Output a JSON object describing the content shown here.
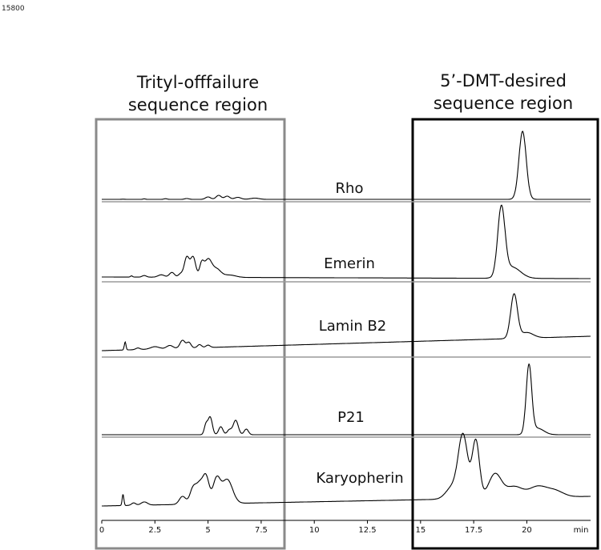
{
  "figure_id": "15800",
  "chart_data": {
    "type": "line",
    "xlabel": "min",
    "xlim": [
      0,
      23
    ],
    "x_ticks": [
      0,
      2.5,
      5,
      7.5,
      10,
      12.5,
      15,
      17.5,
      20
    ],
    "x_tick_labels": [
      "0",
      "2.5",
      "5",
      "7.5",
      "10",
      "12.5",
      "15",
      "17.5",
      "20"
    ],
    "x_unit_label": "min",
    "regions": [
      {
        "label_lines": [
          "Trityl-offfailure",
          "sequence region"
        ],
        "x_range": [
          0,
          8.6
        ],
        "color": "#8a8a8a"
      },
      {
        "label_lines": [
          "5’-DMT-desired",
          "sequence region"
        ],
        "x_range": [
          14.9,
          23
        ],
        "color": "#000000"
      }
    ],
    "series": [
      {
        "name": "Rho",
        "baseline": 0.0,
        "drift": 0.0,
        "peaks": [
          [
            1.0,
            0.2,
            0.08
          ],
          [
            2.0,
            0.6,
            0.06
          ],
          [
            3.0,
            0.8,
            0.08
          ],
          [
            4.0,
            1.0,
            0.1
          ],
          [
            5.0,
            3,
            0.12
          ],
          [
            5.5,
            5,
            0.12
          ],
          [
            5.9,
            4,
            0.12
          ],
          [
            6.4,
            2.5,
            0.15
          ],
          [
            7.2,
            1.5,
            0.2
          ],
          [
            19.8,
            85,
            0.17
          ]
        ]
      },
      {
        "name": "Emerin",
        "baseline": 0.0,
        "drift": -2.0,
        "peaks": [
          [
            1.4,
            1.5,
            0.05
          ],
          [
            2.0,
            2.0,
            0.1
          ],
          [
            2.8,
            3.0,
            0.15
          ],
          [
            3.3,
            6.0,
            0.12
          ],
          [
            3.7,
            4.0,
            0.1
          ],
          [
            4.0,
            25,
            0.12
          ],
          [
            4.3,
            25,
            0.12
          ],
          [
            4.7,
            16,
            0.1
          ],
          [
            5.0,
            22,
            0.17
          ],
          [
            5.4,
            10,
            0.2
          ],
          [
            6.0,
            3.0,
            0.3
          ],
          [
            18.8,
            85,
            0.17
          ],
          [
            19.3,
            14,
            0.4
          ]
        ]
      },
      {
        "name": "Lamin B2",
        "baseline": 0.0,
        "drift": 18.0,
        "peaks": [
          [
            1.1,
            10,
            0.04
          ],
          [
            1.7,
            2.0,
            0.1
          ],
          [
            2.5,
            3.0,
            0.2
          ],
          [
            3.2,
            4.0,
            0.15
          ],
          [
            3.8,
            10,
            0.12
          ],
          [
            4.1,
            7.0,
            0.1
          ],
          [
            4.6,
            4.0,
            0.1
          ],
          [
            5.0,
            3.0,
            0.1
          ],
          [
            19.4,
            55,
            0.16
          ],
          [
            20.0,
            7.0,
            0.3
          ]
        ]
      },
      {
        "name": "P21",
        "baseline": 0.0,
        "drift": 0.0,
        "peaks": [
          [
            4.9,
            12,
            0.08
          ],
          [
            5.1,
            22,
            0.1
          ],
          [
            5.6,
            10,
            0.1
          ],
          [
            6.0,
            6.0,
            0.1
          ],
          [
            6.3,
            18,
            0.12
          ],
          [
            6.8,
            7.0,
            0.1
          ],
          [
            20.1,
            85,
            0.13
          ],
          [
            20.5,
            8.0,
            0.3
          ]
        ]
      },
      {
        "name": "Karyopherin",
        "baseline": 0.0,
        "drift": 12.0,
        "peaks": [
          [
            1.0,
            14,
            0.04
          ],
          [
            1.5,
            3.0,
            0.1
          ],
          [
            2.0,
            4.0,
            0.15
          ],
          [
            3.8,
            10,
            0.15
          ],
          [
            4.3,
            20,
            0.15
          ],
          [
            4.6,
            22,
            0.15
          ],
          [
            4.9,
            34,
            0.15
          ],
          [
            5.4,
            30,
            0.17
          ],
          [
            5.9,
            30,
            0.25
          ],
          [
            16.5,
            15,
            0.3
          ],
          [
            17.0,
            78,
            0.22
          ],
          [
            17.6,
            72,
            0.17
          ],
          [
            18.5,
            30,
            0.3
          ],
          [
            19.4,
            14,
            0.4
          ],
          [
            20.5,
            13,
            0.4
          ],
          [
            21.3,
            8.0,
            0.4
          ]
        ]
      }
    ],
    "grid": false,
    "legend": "none"
  }
}
